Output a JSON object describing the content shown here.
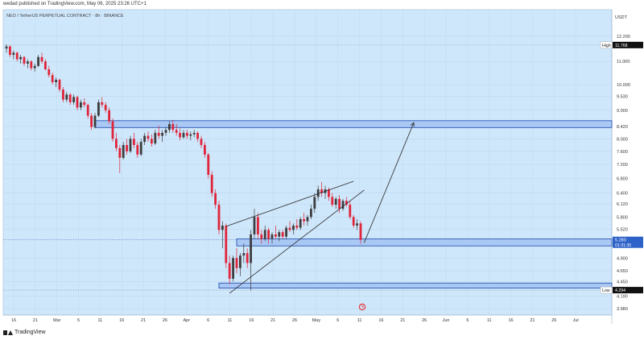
{
  "header": {
    "published": "wedad published on TradingView.com, May 06, 2025 23:26 UTC+1",
    "symbol": "NEO / TetherUS PERPETUAL CONTRACT · 8h · BINANCE",
    "unit": "USDT"
  },
  "footer": {
    "brand": "TradingView"
  },
  "colors": {
    "background": "#cfe7fb",
    "bull": "#3d3d3d",
    "bear": "#e0243a",
    "zone_fill": "#aac8f4",
    "zone_border": "#2c57b4",
    "line": "#2a2a2a",
    "price_badge": "#2d62c9",
    "hl_badge": "#111111",
    "icon": "#e53a3a"
  },
  "chart_data": {
    "type": "candlestick",
    "ylim": [
      3.98,
      12.2
    ],
    "y_scale": "log",
    "y_ticks": [
      "12.200",
      "11.000",
      "10.000",
      "9.530",
      "9.000",
      "8.420",
      "8.000",
      "7.600",
      "7.200",
      "6.800",
      "6.400",
      "6.120",
      "5.800",
      "5.520",
      "4.900",
      "4.650",
      "4.450",
      "4.190",
      "3.980"
    ],
    "x_labels": [
      "16",
      "21",
      "Mar",
      "5",
      "11",
      "16",
      "21",
      "26",
      "Apr",
      "6",
      "11",
      "16",
      "21",
      "26",
      "May",
      "6",
      "11",
      "16",
      "21",
      "26",
      "Jun",
      "6",
      "11",
      "16",
      "21",
      "26",
      "Jul"
    ],
    "high": {
      "label": "High",
      "value": "11.768"
    },
    "low": {
      "label": "Low",
      "value": "4.294"
    },
    "last_price": {
      "value": "5.280",
      "countdown": "01:31:35"
    },
    "candles": [
      [
        11.6,
        11.8,
        11.4,
        11.7
      ],
      [
        11.7,
        11.75,
        11.2,
        11.3
      ],
      [
        11.3,
        11.5,
        11.1,
        11.4
      ],
      [
        11.4,
        11.45,
        11.0,
        11.1
      ],
      [
        11.1,
        11.3,
        10.9,
        11.2
      ],
      [
        11.2,
        11.25,
        10.8,
        10.9
      ],
      [
        10.9,
        11.1,
        10.7,
        11.0
      ],
      [
        11.0,
        11.05,
        10.6,
        10.7
      ],
      [
        10.7,
        10.9,
        10.55,
        10.8
      ],
      [
        10.8,
        11.3,
        10.75,
        11.2
      ],
      [
        11.2,
        11.4,
        10.9,
        11.0
      ],
      [
        11.0,
        11.1,
        10.6,
        10.65
      ],
      [
        10.65,
        10.8,
        10.3,
        10.4
      ],
      [
        10.4,
        10.5,
        10.0,
        10.1
      ],
      [
        10.1,
        10.3,
        9.9,
        10.2
      ],
      [
        10.2,
        10.25,
        9.7,
        9.8
      ],
      [
        9.8,
        9.9,
        9.3,
        9.4
      ],
      [
        9.4,
        9.7,
        9.3,
        9.6
      ],
      [
        9.6,
        9.65,
        9.2,
        9.3
      ],
      [
        9.3,
        9.6,
        9.2,
        9.5
      ],
      [
        9.5,
        9.55,
        9.0,
        9.1
      ],
      [
        9.1,
        9.4,
        9.0,
        9.3
      ],
      [
        9.3,
        9.45,
        9.1,
        9.2
      ],
      [
        9.2,
        9.25,
        8.7,
        8.8
      ],
      [
        8.8,
        8.9,
        8.3,
        8.4
      ],
      [
        8.4,
        8.9,
        8.35,
        8.8
      ],
      [
        8.8,
        9.4,
        8.75,
        9.3
      ],
      [
        9.3,
        9.5,
        9.1,
        9.2
      ],
      [
        9.2,
        9.3,
        8.9,
        9.0
      ],
      [
        9.0,
        9.1,
        8.5,
        8.6
      ],
      [
        8.6,
        8.7,
        7.9,
        8.0
      ],
      [
        8.0,
        8.2,
        7.6,
        7.7
      ],
      [
        7.7,
        7.8,
        6.95,
        7.4
      ],
      [
        7.4,
        7.9,
        7.35,
        7.8
      ],
      [
        7.8,
        8.0,
        7.5,
        7.6
      ],
      [
        7.6,
        8.1,
        7.55,
        8.0
      ],
      [
        8.0,
        8.2,
        7.7,
        7.8
      ],
      [
        7.8,
        7.9,
        7.4,
        7.5
      ],
      [
        7.5,
        8.0,
        7.45,
        7.9
      ],
      [
        7.9,
        8.2,
        7.8,
        8.1
      ],
      [
        8.1,
        8.25,
        7.9,
        8.0
      ],
      [
        8.0,
        8.15,
        7.75,
        7.85
      ],
      [
        7.85,
        8.3,
        7.8,
        8.2
      ],
      [
        8.2,
        8.45,
        8.0,
        8.1
      ],
      [
        8.1,
        8.3,
        7.9,
        8.2
      ],
      [
        8.2,
        8.4,
        8.1,
        8.3
      ],
      [
        8.3,
        8.6,
        8.2,
        8.5
      ],
      [
        8.5,
        8.65,
        8.2,
        8.3
      ],
      [
        8.3,
        8.5,
        8.1,
        8.2
      ],
      [
        8.2,
        8.35,
        7.95,
        8.05
      ],
      [
        8.05,
        8.3,
        8.0,
        8.2
      ],
      [
        8.2,
        8.3,
        8.0,
        8.1
      ],
      [
        8.1,
        8.25,
        7.95,
        8.15
      ],
      [
        8.15,
        8.3,
        8.05,
        8.2
      ],
      [
        8.2,
        8.25,
        7.9,
        8.0
      ],
      [
        8.0,
        8.1,
        7.7,
        7.8
      ],
      [
        7.8,
        7.9,
        7.4,
        7.5
      ],
      [
        7.5,
        7.55,
        6.8,
        6.9
      ],
      [
        6.9,
        7.0,
        6.3,
        6.4
      ],
      [
        6.4,
        6.5,
        6.0,
        6.1
      ],
      [
        6.1,
        6.2,
        5.4,
        5.5
      ],
      [
        5.5,
        5.7,
        5.1,
        5.6
      ],
      [
        5.6,
        5.65,
        4.7,
        4.8
      ],
      [
        4.8,
        4.95,
        4.4,
        4.5
      ],
      [
        4.5,
        4.95,
        4.45,
        4.9
      ],
      [
        4.9,
        5.1,
        4.6,
        4.7
      ],
      [
        4.7,
        5.0,
        4.55,
        4.95
      ],
      [
        4.95,
        5.2,
        4.8,
        5.0
      ],
      [
        5.0,
        5.1,
        4.7,
        4.8
      ],
      [
        4.8,
        5.5,
        4.29,
        5.4
      ],
      [
        5.4,
        6.0,
        5.3,
        5.8
      ],
      [
        5.8,
        5.9,
        5.3,
        5.4
      ],
      [
        5.4,
        5.5,
        5.2,
        5.3
      ],
      [
        5.3,
        5.6,
        5.25,
        5.5
      ],
      [
        5.5,
        5.55,
        5.2,
        5.3
      ],
      [
        5.3,
        5.45,
        5.2,
        5.4
      ],
      [
        5.4,
        5.6,
        5.3,
        5.35
      ],
      [
        5.35,
        5.5,
        5.25,
        5.45
      ],
      [
        5.45,
        5.5,
        5.3,
        5.35
      ],
      [
        5.35,
        5.6,
        5.3,
        5.55
      ],
      [
        5.55,
        5.7,
        5.45,
        5.5
      ],
      [
        5.5,
        5.65,
        5.4,
        5.6
      ],
      [
        5.6,
        5.75,
        5.5,
        5.55
      ],
      [
        5.55,
        5.8,
        5.5,
        5.75
      ],
      [
        5.75,
        5.9,
        5.6,
        5.7
      ],
      [
        5.7,
        5.85,
        5.6,
        5.8
      ],
      [
        5.8,
        6.1,
        5.75,
        6.0
      ],
      [
        6.0,
        6.4,
        5.9,
        6.3
      ],
      [
        6.3,
        6.6,
        6.2,
        6.5
      ],
      [
        6.5,
        6.7,
        6.3,
        6.4
      ],
      [
        6.4,
        6.6,
        6.25,
        6.5
      ],
      [
        6.5,
        6.55,
        6.2,
        6.3
      ],
      [
        6.3,
        6.4,
        6.05,
        6.1
      ],
      [
        6.1,
        6.3,
        6.0,
        6.25
      ],
      [
        6.25,
        6.35,
        5.9,
        6.0
      ],
      [
        6.0,
        6.25,
        5.95,
        6.2
      ],
      [
        6.2,
        6.3,
        6.05,
        6.1
      ],
      [
        6.1,
        6.2,
        5.75,
        5.8
      ],
      [
        5.8,
        5.85,
        5.55,
        5.6
      ],
      [
        5.6,
        5.75,
        5.5,
        5.65
      ],
      [
        5.65,
        5.7,
        5.2,
        5.28
      ]
    ],
    "zones": [
      {
        "y_low": 8.38,
        "y_high": 8.62
      },
      {
        "y_low": 5.15,
        "y_high": 5.3
      },
      {
        "y_low": 4.33,
        "y_high": 4.42
      }
    ],
    "lines": [
      {
        "from": [
          62,
          5.58
        ],
        "to": [
          98,
          6.72
        ]
      },
      {
        "from": [
          63,
          4.24
        ],
        "to": [
          101,
          6.48
        ]
      },
      {
        "from": [
          101,
          5.22
        ],
        "to": [
          115,
          8.55
        ]
      }
    ]
  }
}
